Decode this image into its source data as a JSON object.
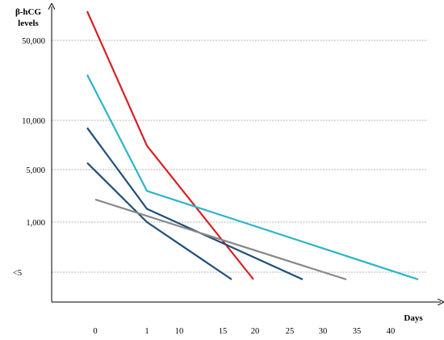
{
  "chart_data": {
    "type": "line",
    "title": "",
    "ylabel": "β-hCG levels",
    "xlabel": "Days",
    "grid": true,
    "x_ticks": [
      "0",
      "1",
      "10",
      "15",
      "20",
      "25",
      "30",
      "35",
      "40"
    ],
    "y_ticks": [
      "50,000",
      "10,000",
      "5,000",
      "1,000",
      "<5"
    ],
    "series": [
      {
        "color": "#d62027",
        "points": [
          [
            "0",
            100000
          ],
          [
            "1",
            7000
          ],
          [
            "20",
            2
          ]
        ]
      },
      {
        "color": "#2bb5c8",
        "points": [
          [
            "0",
            25000
          ],
          [
            "1",
            2600
          ],
          [
            "40",
            2
          ]
        ]
      },
      {
        "color": "#1f4e79",
        "points": [
          [
            "0",
            9000
          ],
          [
            "1",
            1500
          ],
          [
            "25",
            2
          ]
        ]
      },
      {
        "color": "#1f4e79",
        "points": [
          [
            "0",
            5500
          ],
          [
            "1",
            1000
          ],
          [
            "15",
            2
          ]
        ]
      },
      {
        "color": "#888888",
        "points": [
          [
            "0",
            2000
          ],
          [
            "35",
            2
          ]
        ]
      }
    ]
  }
}
